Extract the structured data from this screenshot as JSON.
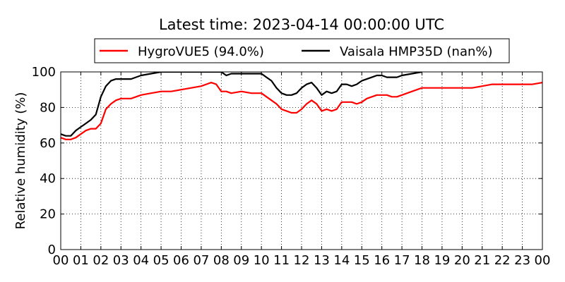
{
  "chart_data": {
    "type": "line",
    "title": "Latest time: 2023-04-14 00:00:00 UTC",
    "xlabel": "",
    "ylabel": "Relative humidity (%)",
    "xlim": [
      0,
      24
    ],
    "ylim": [
      0,
      100
    ],
    "x_tick_labels": [
      "00",
      "01",
      "02",
      "03",
      "04",
      "05",
      "06",
      "07",
      "08",
      "09",
      "10",
      "11",
      "12",
      "13",
      "14",
      "15",
      "16",
      "17",
      "18",
      "19",
      "20",
      "21",
      "22",
      "23",
      "00"
    ],
    "y_ticks": [
      0,
      20,
      40,
      60,
      80,
      100
    ],
    "grid": true,
    "legend_position": "top-center, above plot",
    "series": [
      {
        "name": "HygroVUE5 (94.0%)",
        "color": "#ff0000",
        "x": [
          0,
          0.25,
          0.5,
          0.75,
          1.0,
          1.25,
          1.5,
          1.75,
          2.0,
          2.25,
          2.5,
          2.75,
          3.0,
          3.25,
          3.5,
          4.0,
          4.5,
          5.0,
          5.25,
          5.5,
          6.0,
          6.5,
          7.0,
          7.25,
          7.5,
          7.75,
          8.0,
          8.25,
          8.5,
          9.0,
          9.5,
          10.0,
          10.25,
          10.5,
          10.75,
          11.0,
          11.25,
          11.5,
          11.75,
          12.0,
          12.25,
          12.5,
          12.75,
          13.0,
          13.25,
          13.5,
          13.75,
          14.0,
          14.25,
          14.5,
          14.75,
          15.0,
          15.25,
          15.5,
          15.75,
          16.0,
          16.25,
          16.5,
          16.75,
          17.0,
          17.5,
          18.0,
          18.5,
          19.0,
          19.5,
          20.0,
          20.5,
          21.0,
          21.5,
          22.0,
          22.5,
          23.0,
          23.5,
          24.0
        ],
        "y": [
          63,
          62,
          62,
          63,
          65,
          67,
          68,
          68,
          71,
          79,
          82,
          84,
          85,
          85,
          85,
          87,
          88,
          89,
          89,
          89,
          90,
          91,
          92,
          93,
          94,
          93,
          89,
          89,
          88,
          89,
          88,
          88,
          86,
          84,
          82,
          79,
          78,
          77,
          77,
          79,
          82,
          84,
          82,
          78,
          79,
          78,
          79,
          83,
          83,
          83,
          82,
          83,
          85,
          86,
          87,
          87,
          87,
          86,
          86,
          87,
          89,
          91,
          91,
          91,
          91,
          91,
          91,
          92,
          93,
          93,
          93,
          93,
          93,
          94
        ]
      },
      {
        "name": "Vaisala HMP35D (nan%)",
        "color": "#000000",
        "x": [
          0,
          0.25,
          0.5,
          0.75,
          1.0,
          1.25,
          1.5,
          1.75,
          2.0,
          2.25,
          2.5,
          2.75,
          3.0,
          3.25,
          3.5,
          4.0,
          4.5,
          5.0,
          5.5,
          6.0,
          6.5,
          7.0,
          7.5,
          8.0,
          8.25,
          8.5,
          9.0,
          9.5,
          10.0,
          10.25,
          10.5,
          10.75,
          11.0,
          11.25,
          11.5,
          11.75,
          12.0,
          12.25,
          12.5,
          12.75,
          13.0,
          13.25,
          13.5,
          13.75,
          14.0,
          14.25,
          14.5,
          14.75,
          15.0,
          15.25,
          15.5,
          15.75,
          16.0,
          16.25,
          16.5,
          16.75,
          17.0,
          17.5,
          18.0
        ],
        "y": [
          65,
          64,
          64,
          67,
          69,
          71,
          73,
          76,
          86,
          92,
          95,
          96,
          96,
          96,
          96,
          98,
          99,
          100,
          100,
          100,
          100,
          100,
          100,
          100,
          98,
          99,
          99,
          99,
          99,
          97,
          95,
          91,
          88,
          87,
          87,
          88,
          91,
          93,
          94,
          91,
          87,
          89,
          88,
          89,
          93,
          93,
          92,
          93,
          95,
          96,
          97,
          98,
          98,
          97,
          97,
          97,
          98,
          99,
          100
        ]
      }
    ]
  }
}
